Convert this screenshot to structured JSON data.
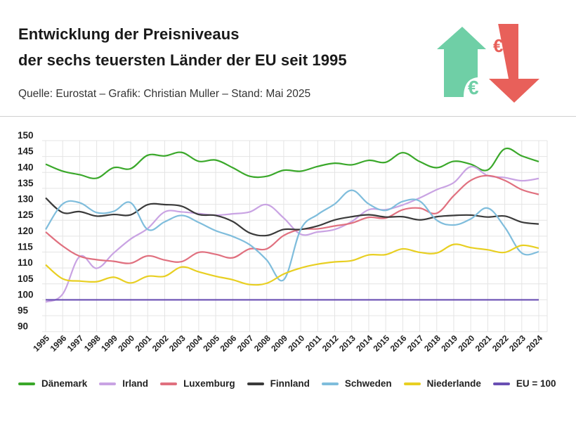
{
  "header": {
    "title_line1": "Entwicklung der Preisniveaus",
    "title_line2": "der sechs teuersten Länder der EU seit 1995",
    "source": "Quelle: Eurostat – Grafik: Christian Muller – Stand: Mai 2025",
    "icon": "euro-price-up-down-arrows-icon",
    "icon_colors": {
      "up": "#6fcfa6",
      "down": "#e8605a"
    }
  },
  "chart_data": {
    "type": "line",
    "title": "",
    "xlabel": "",
    "ylabel": "",
    "ylim": [
      90,
      150
    ],
    "yticks": [
      90,
      95,
      100,
      105,
      110,
      115,
      120,
      125,
      130,
      135,
      140,
      145,
      150
    ],
    "grid": true,
    "legend_placement": "bottom",
    "x": [
      1995,
      1996,
      1997,
      1998,
      1999,
      2000,
      2001,
      2002,
      2003,
      2004,
      2005,
      2006,
      2007,
      2008,
      2009,
      2010,
      2011,
      2012,
      2013,
      2014,
      2015,
      2016,
      2017,
      2018,
      2019,
      2020,
      2021,
      2022,
      2023,
      2024
    ],
    "series": [
      {
        "name": "Dänemark",
        "color": "#3aa82a",
        "values": [
          142.6,
          140.4,
          139.3,
          138.2,
          141.5,
          141.2,
          145.4,
          145.2,
          146.3,
          143.5,
          143.9,
          141.5,
          138.8,
          138.8,
          140.7,
          140.4,
          141.9,
          142.9,
          142.4,
          143.8,
          143.2,
          146.2,
          143.4,
          141.5,
          143.5,
          142.6,
          140.8,
          147.4,
          145.2,
          143.4
        ]
      },
      {
        "name": "Irland",
        "color": "#c9a3e3",
        "values": [
          99.3,
          101.8,
          113.6,
          109.9,
          114.7,
          119.1,
          122.4,
          127.6,
          127.6,
          127.1,
          126.6,
          127.0,
          127.6,
          129.9,
          125.7,
          120.6,
          121.3,
          122.1,
          124.6,
          128.3,
          128.3,
          129.8,
          132.0,
          134.6,
          136.8,
          141.8,
          139.0,
          138.4,
          137.4,
          138.1
        ]
      },
      {
        "name": "Luxemburg",
        "color": "#e0707f",
        "values": [
          121.3,
          116.9,
          113.7,
          112.6,
          112.1,
          111.5,
          113.8,
          112.5,
          112.0,
          114.9,
          114.3,
          113.2,
          116.0,
          116.0,
          120.2,
          122.1,
          122.3,
          123.2,
          124.1,
          125.9,
          125.7,
          128.3,
          128.8,
          127.2,
          132.7,
          137.5,
          139.0,
          137.5,
          134.6,
          133.1
        ]
      },
      {
        "name": "Finnland",
        "color": "#3a3a3a",
        "values": [
          132.0,
          127.4,
          127.7,
          126.3,
          126.8,
          126.7,
          129.9,
          129.9,
          129.4,
          126.8,
          126.5,
          124.6,
          121.0,
          120.2,
          122.1,
          122.1,
          123.2,
          125.1,
          126.1,
          126.7,
          126.0,
          126.1,
          125.1,
          126.1,
          126.5,
          126.6,
          126.0,
          126.3,
          124.4,
          123.8
        ]
      },
      {
        "name": "Schweden",
        "color": "#7fbddc",
        "values": [
          122.1,
          130.1,
          130.5,
          127.4,
          127.8,
          130.5,
          122.1,
          124.5,
          126.5,
          124.3,
          121.7,
          119.9,
          117.3,
          112.5,
          106.3,
          122.1,
          126.8,
          130.1,
          134.4,
          130.1,
          128.1,
          130.9,
          131.0,
          125.0,
          123.5,
          125.4,
          128.8,
          122.8,
          114.7,
          115.1
        ]
      },
      {
        "name": "Niederlande",
        "color": "#e8cf22",
        "values": [
          111.0,
          106.6,
          105.9,
          105.7,
          107.1,
          105.3,
          107.4,
          107.4,
          110.3,
          108.8,
          107.4,
          106.3,
          104.8,
          105.2,
          108.1,
          110.0,
          111.2,
          111.9,
          112.3,
          114.1,
          114.2,
          116.0,
          114.9,
          114.7,
          117.4,
          116.4,
          115.7,
          114.9,
          117.1,
          116.2
        ]
      },
      {
        "name": "EU = 100",
        "color": "#6a4fb3",
        "values": [
          100,
          100,
          100,
          100,
          100,
          100,
          100,
          100,
          100,
          100,
          100,
          100,
          100,
          100,
          100,
          100,
          100,
          100,
          100,
          100,
          100,
          100,
          100,
          100,
          100,
          100,
          100,
          100,
          100,
          100
        ]
      }
    ]
  }
}
